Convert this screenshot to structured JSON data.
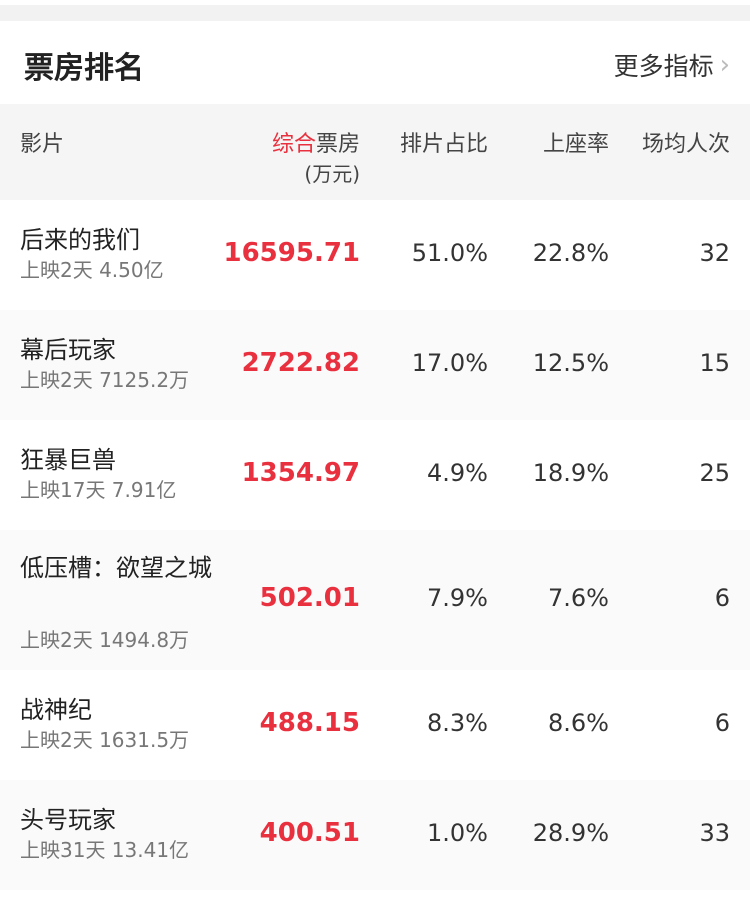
{
  "header": {
    "title": "票房排名",
    "more_label": "更多指标"
  },
  "columns": {
    "film": "影片",
    "box_office_accent": "综合",
    "box_office": "票房",
    "box_office_unit": "(万元)",
    "schedule_ratio": "排片占比",
    "seat_rate": "上座率",
    "avg_attendance": "场均人次"
  },
  "colors": {
    "accent": "#e8303f"
  },
  "rows": [
    {
      "name": "后来的我们",
      "sub": "上映2天 4.50亿",
      "box_office": "16595.71",
      "schedule_ratio": "51.0%",
      "seat_rate": "22.8%",
      "avg_attendance": "32"
    },
    {
      "name": "幕后玩家",
      "sub": "上映2天 7125.2万",
      "box_office": "2722.82",
      "schedule_ratio": "17.0%",
      "seat_rate": "12.5%",
      "avg_attendance": "15"
    },
    {
      "name": "狂暴巨兽",
      "sub": "上映17天 7.91亿",
      "box_office": "1354.97",
      "schedule_ratio": "4.9%",
      "seat_rate": "18.9%",
      "avg_attendance": "25"
    },
    {
      "name": "低压槽：欲望之城",
      "sub": "上映2天 1494.8万",
      "box_office": "502.01",
      "schedule_ratio": "7.9%",
      "seat_rate": "7.6%",
      "avg_attendance": "6"
    },
    {
      "name": "战神纪",
      "sub": "上映2天 1631.5万",
      "box_office": "488.15",
      "schedule_ratio": "8.3%",
      "seat_rate": "8.6%",
      "avg_attendance": "6"
    },
    {
      "name": "头号玩家",
      "sub": "上映31天 13.41亿",
      "box_office": "400.51",
      "schedule_ratio": "1.0%",
      "seat_rate": "28.9%",
      "avg_attendance": "33"
    }
  ]
}
